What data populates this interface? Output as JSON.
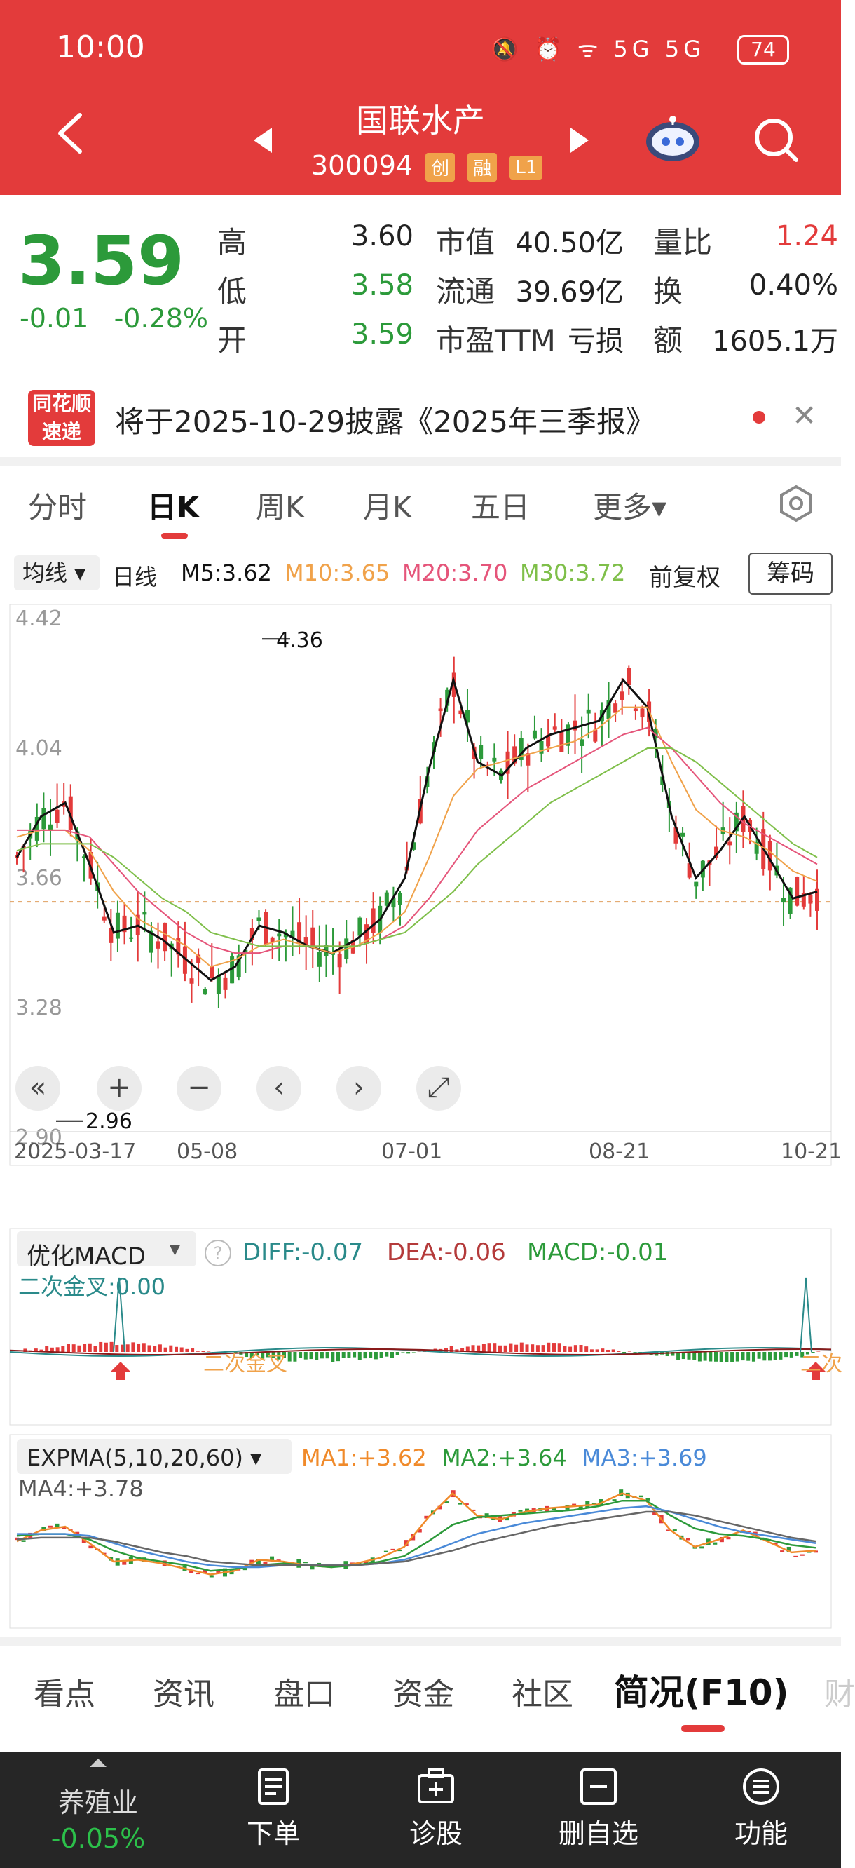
{
  "status_bar": {
    "time": "10:00",
    "icons": "🔕 ⏰ ᯤ 5G 5G",
    "battery": "74"
  },
  "header": {
    "stock_name": "国联水产",
    "stock_code": "300094",
    "tags": [
      "创",
      "融",
      "L1"
    ]
  },
  "quote": {
    "price": "3.59",
    "change": "-0.01",
    "change_pct": "-0.28%",
    "grid": [
      {
        "label": "高",
        "value": "3.60",
        "color": "#222222"
      },
      {
        "label": "低",
        "value": "3.58",
        "color": "#2c9a3a"
      },
      {
        "label": "开",
        "value": "3.59",
        "color": "#2c9a3a"
      },
      {
        "label": "市值",
        "value": "40.50亿",
        "color": "#222222"
      },
      {
        "label": "流通",
        "value": "39.69亿",
        "color": "#222222"
      },
      {
        "label": "市盈TTM",
        "value": "亏损",
        "color": "#222222"
      },
      {
        "label": "量比",
        "value": "1.24",
        "color": "#e33b3b"
      },
      {
        "label": "换",
        "value": "0.40%",
        "color": "#222222"
      },
      {
        "label": "额",
        "value": "1605.1万",
        "color": "#222222"
      }
    ]
  },
  "news": {
    "logo_line1": "同花顺",
    "logo_line2": "速递",
    "text": "将于2025-10-29披露《2025年三季报》"
  },
  "chart_tabs": [
    "分时",
    "日K",
    "周K",
    "月K",
    "五日",
    "更多▾"
  ],
  "active_tab": "日K",
  "ma_bar": {
    "select": "均线 ▾",
    "period": "日线",
    "m5": "M5:3.62",
    "m10": "M10:3.65",
    "m20": "M20:3.70",
    "m30": "M30:3.72",
    "adjust": "前复权",
    "chips": "筹码"
  },
  "colors": {
    "up": "#e33b3b",
    "down": "#2c9a3a",
    "m5": "#111111",
    "m10": "#f0a24a",
    "m20": "#e5557a",
    "m30": "#7fbf4a"
  },
  "chart_data": [
    {
      "type": "candlestick",
      "title": "",
      "y_ticks": [
        "4.42",
        "4.04",
        "3.66",
        "3.28",
        "2.90"
      ],
      "ylim": [
        2.9,
        4.42
      ],
      "x_ticks": [
        "2025-03-17",
        "05-08",
        "07-01",
        "08-21",
        "10-21"
      ],
      "annotations": [
        {
          "label": "4.36",
          "value": 4.36
        },
        {
          "label": "2.96",
          "value": 2.96
        }
      ],
      "ma_lines": [
        {
          "name": "M5",
          "values": [
            3.72,
            3.84,
            3.88,
            3.7,
            3.5,
            3.52,
            3.48,
            3.42,
            3.36,
            3.4,
            3.52,
            3.5,
            3.46,
            3.44,
            3.48,
            3.54,
            3.66,
            3.98,
            4.24,
            4.0,
            3.96,
            4.04,
            4.08,
            4.1,
            4.12,
            4.24,
            4.16,
            3.84,
            3.66,
            3.74,
            3.84,
            3.72,
            3.6,
            3.62
          ]
        },
        {
          "name": "M10",
          "values": [
            3.78,
            3.8,
            3.8,
            3.74,
            3.62,
            3.54,
            3.5,
            3.46,
            3.4,
            3.42,
            3.46,
            3.48,
            3.46,
            3.44,
            3.46,
            3.5,
            3.56,
            3.72,
            3.9,
            3.98,
            4.0,
            4.02,
            4.04,
            4.06,
            4.1,
            4.16,
            4.16,
            4.0,
            3.86,
            3.8,
            3.78,
            3.74,
            3.68,
            3.65
          ]
        },
        {
          "name": "M20",
          "values": [
            3.8,
            3.8,
            3.8,
            3.78,
            3.7,
            3.62,
            3.56,
            3.5,
            3.46,
            3.44,
            3.44,
            3.46,
            3.46,
            3.46,
            3.46,
            3.48,
            3.52,
            3.6,
            3.7,
            3.8,
            3.86,
            3.92,
            3.96,
            4.0,
            4.04,
            4.08,
            4.1,
            4.04,
            3.96,
            3.88,
            3.82,
            3.78,
            3.74,
            3.7
          ]
        },
        {
          "name": "M30",
          "values": [
            3.74,
            3.76,
            3.76,
            3.76,
            3.72,
            3.66,
            3.6,
            3.56,
            3.5,
            3.48,
            3.46,
            3.46,
            3.46,
            3.46,
            3.46,
            3.48,
            3.5,
            3.56,
            3.62,
            3.7,
            3.76,
            3.82,
            3.88,
            3.92,
            3.96,
            4.0,
            4.04,
            4.04,
            4.0,
            3.94,
            3.88,
            3.82,
            3.76,
            3.72
          ]
        }
      ]
    },
    {
      "type": "line",
      "title": "优化MACD",
      "diff": "DIFF:-0.07",
      "dea": "DEA:-0.06",
      "macd": "MACD:-0.01",
      "note": "二次金叉:0.00",
      "annotation": "二次金叉",
      "annotation_right": "二次"
    },
    {
      "type": "line",
      "title": "EXPMA(5,10,20,60) ▾",
      "ma1": "MA1:+3.62",
      "ma2": "MA2:+3.64",
      "ma3": "MA3:+3.69",
      "ma4": "MA4:+3.78"
    }
  ],
  "bottom_tabs": [
    "看点",
    "资讯",
    "盘口",
    "资金",
    "社区",
    "简况(F10)",
    "财"
  ],
  "footer": {
    "sector_name": "养殖业",
    "sector_change": "-0.05%",
    "items": [
      {
        "label": "下单",
        "icon": "order-icon"
      },
      {
        "label": "诊股",
        "icon": "diagnose-icon"
      },
      {
        "label": "删自选",
        "icon": "remove-watchlist-icon"
      },
      {
        "label": "功能",
        "icon": "menu-icon"
      }
    ]
  }
}
